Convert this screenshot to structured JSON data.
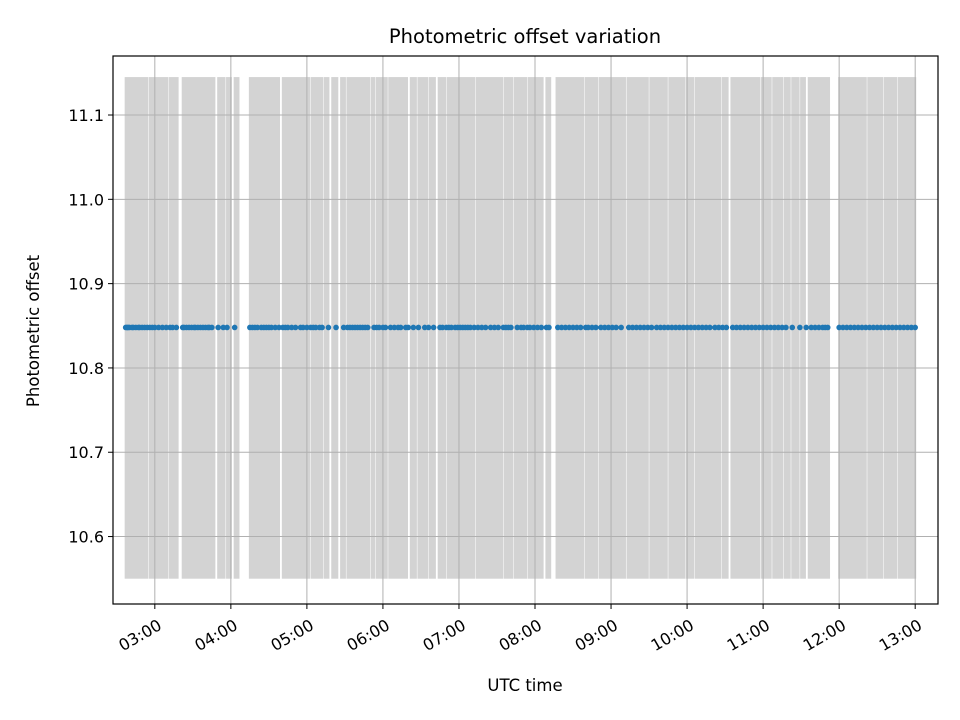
{
  "chart_data": {
    "type": "scatter",
    "title": "Photometric offset variation",
    "xlabel": "UTC time",
    "ylabel": "Photometric offset",
    "x_axis": {
      "kind": "time",
      "range": [
        "02:27",
        "13:18"
      ],
      "ticks": [
        "03:00",
        "04:00",
        "05:00",
        "06:00",
        "07:00",
        "08:00",
        "09:00",
        "10:00",
        "11:00",
        "12:00",
        "13:00"
      ]
    },
    "y_axis": {
      "range": [
        10.52,
        11.17
      ],
      "ticks": [
        10.6,
        10.7,
        10.8,
        10.9,
        11.0,
        11.1
      ],
      "tick_labels": [
        "10.6",
        "10.7",
        "10.8",
        "10.9",
        "11.0",
        "11.1"
      ]
    },
    "grid": true,
    "colors": {
      "points": "#1f77b4",
      "error_band": "#d3d3d3",
      "grid": "#b0b0b0"
    },
    "series": [
      {
        "value": 10.848,
        "error_low": 10.55,
        "error_high": 11.145,
        "x": [
          "02:37",
          "02:38",
          "02:39",
          "02:40",
          "02:42",
          "02:43",
          "02:45",
          "02:47",
          "02:48",
          "02:50",
          "02:52",
          "02:54",
          "02:56",
          "02:58",
          "03:00",
          "03:03",
          "03:06",
          "03:09",
          "03:12",
          "03:14",
          "03:17",
          "03:22",
          "03:23",
          "03:25",
          "03:27",
          "03:29",
          "03:31",
          "03:32",
          "03:34",
          "03:36",
          "03:38",
          "03:40",
          "03:42",
          "03:43",
          "03:45",
          "03:50",
          "03:54",
          "03:57",
          "04:03",
          "04:15",
          "04:17",
          "04:19",
          "04:21",
          "04:24",
          "04:26",
          "04:28",
          "04:30",
          "04:32",
          "04:35",
          "04:38",
          "04:41",
          "04:43",
          "04:45",
          "04:48",
          "04:51",
          "04:55",
          "04:57",
          "05:00",
          "05:03",
          "05:05",
          "05:07",
          "05:10",
          "05:12",
          "05:17",
          "05:23",
          "05:29",
          "05:32",
          "05:34",
          "05:36",
          "05:38",
          "05:40",
          "05:42",
          "05:44",
          "05:46",
          "05:48",
          "05:53",
          "05:55",
          "05:57",
          "06:00",
          "06:02",
          "06:06",
          "06:09",
          "06:12",
          "06:14",
          "06:18",
          "06:20",
          "06:24",
          "06:28",
          "06:33",
          "06:36",
          "06:40",
          "06:45",
          "06:47",
          "06:50",
          "06:52",
          "06:54",
          "06:57",
          "06:59",
          "07:01",
          "07:03",
          "07:05",
          "07:07",
          "07:09",
          "07:12",
          "07:15",
          "07:18",
          "07:21",
          "07:25",
          "07:28",
          "07:31",
          "07:35",
          "07:37",
          "07:39",
          "07:41",
          "07:46",
          "07:49",
          "07:51",
          "07:54",
          "07:56",
          "07:59",
          "08:02",
          "08:05",
          "08:09",
          "08:11",
          "08:18",
          "08:21",
          "08:24",
          "08:27",
          "08:30",
          "08:33",
          "08:36",
          "08:40",
          "08:42",
          "08:45",
          "08:48",
          "08:52",
          "08:55",
          "08:58",
          "09:01",
          "09:04",
          "09:08",
          "09:14",
          "09:17",
          "09:20",
          "09:23",
          "09:26",
          "09:29",
          "09:32",
          "09:36",
          "09:39",
          "09:42",
          "09:45",
          "09:48",
          "09:51",
          "09:54",
          "09:57",
          "10:00",
          "10:03",
          "10:06",
          "10:09",
          "10:12",
          "10:15",
          "10:18",
          "10:22",
          "10:25",
          "10:28",
          "10:31",
          "10:36",
          "10:39",
          "10:42",
          "10:45",
          "10:48",
          "10:51",
          "10:54",
          "10:57",
          "11:00",
          "11:03",
          "11:06",
          "11:09",
          "11:12",
          "11:15",
          "11:18",
          "11:23",
          "11:29",
          "11:34",
          "11:38",
          "11:41",
          "11:44",
          "11:47",
          "11:49",
          "11:51",
          "12:00",
          "12:03",
          "12:06",
          "12:09",
          "12:12",
          "12:15",
          "12:18",
          "12:21",
          "12:24",
          "12:27",
          "12:30",
          "12:33",
          "12:36",
          "12:39",
          "12:42",
          "12:45",
          "12:48",
          "12:51",
          "12:54",
          "12:57",
          "13:00"
        ]
      }
    ],
    "error_band_gaps": [
      [
        "02:54",
        "02:56"
      ],
      [
        "03:10",
        "03:12"
      ],
      [
        "03:18",
        "03:22"
      ],
      [
        "03:47",
        "03:50"
      ],
      [
        "03:55",
        "03:57"
      ],
      [
        "04:00",
        "04:03"
      ],
      [
        "04:06",
        "04:15"
      ],
      [
        "04:38",
        "04:41"
      ],
      [
        "05:02",
        "05:04"
      ],
      [
        "05:12",
        "05:14"
      ],
      [
        "05:17",
        "05:20"
      ],
      [
        "05:24",
        "05:27"
      ],
      [
        "05:30",
        "05:32"
      ],
      [
        "05:49",
        "05:51"
      ],
      [
        "05:53",
        "05:55"
      ],
      [
        "06:03",
        "06:05"
      ],
      [
        "06:19",
        "06:22"
      ],
      [
        "06:26",
        "06:28"
      ],
      [
        "06:35",
        "06:37"
      ],
      [
        "06:41",
        "06:44"
      ],
      [
        "06:49",
        "06:51"
      ],
      [
        "07:12",
        "07:14"
      ],
      [
        "07:34",
        "07:36"
      ],
      [
        "07:42",
        "07:44"
      ],
      [
        "07:53",
        "07:55"
      ],
      [
        "08:06",
        "08:09"
      ],
      [
        "08:12",
        "08:17"
      ],
      [
        "08:38",
        "08:40"
      ],
      [
        "08:49",
        "08:51"
      ],
      [
        "09:11",
        "09:13"
      ],
      [
        "09:29",
        "09:31"
      ],
      [
        "09:44",
        "09:46"
      ],
      [
        "09:58",
        "10:00"
      ],
      [
        "10:05",
        "10:07"
      ],
      [
        "10:26",
        "10:28"
      ],
      [
        "10:32",
        "10:35"
      ],
      [
        "10:57",
        "10:59"
      ],
      [
        "11:06",
        "11:08"
      ],
      [
        "11:15",
        "11:17"
      ],
      [
        "11:21",
        "11:23"
      ],
      [
        "11:28",
        "11:30"
      ],
      [
        "11:33",
        "11:36"
      ],
      [
        "11:52",
        "12:00"
      ],
      [
        "12:21",
        "12:23"
      ],
      [
        "12:34",
        "12:36"
      ],
      [
        "12:45",
        "12:47"
      ]
    ]
  }
}
